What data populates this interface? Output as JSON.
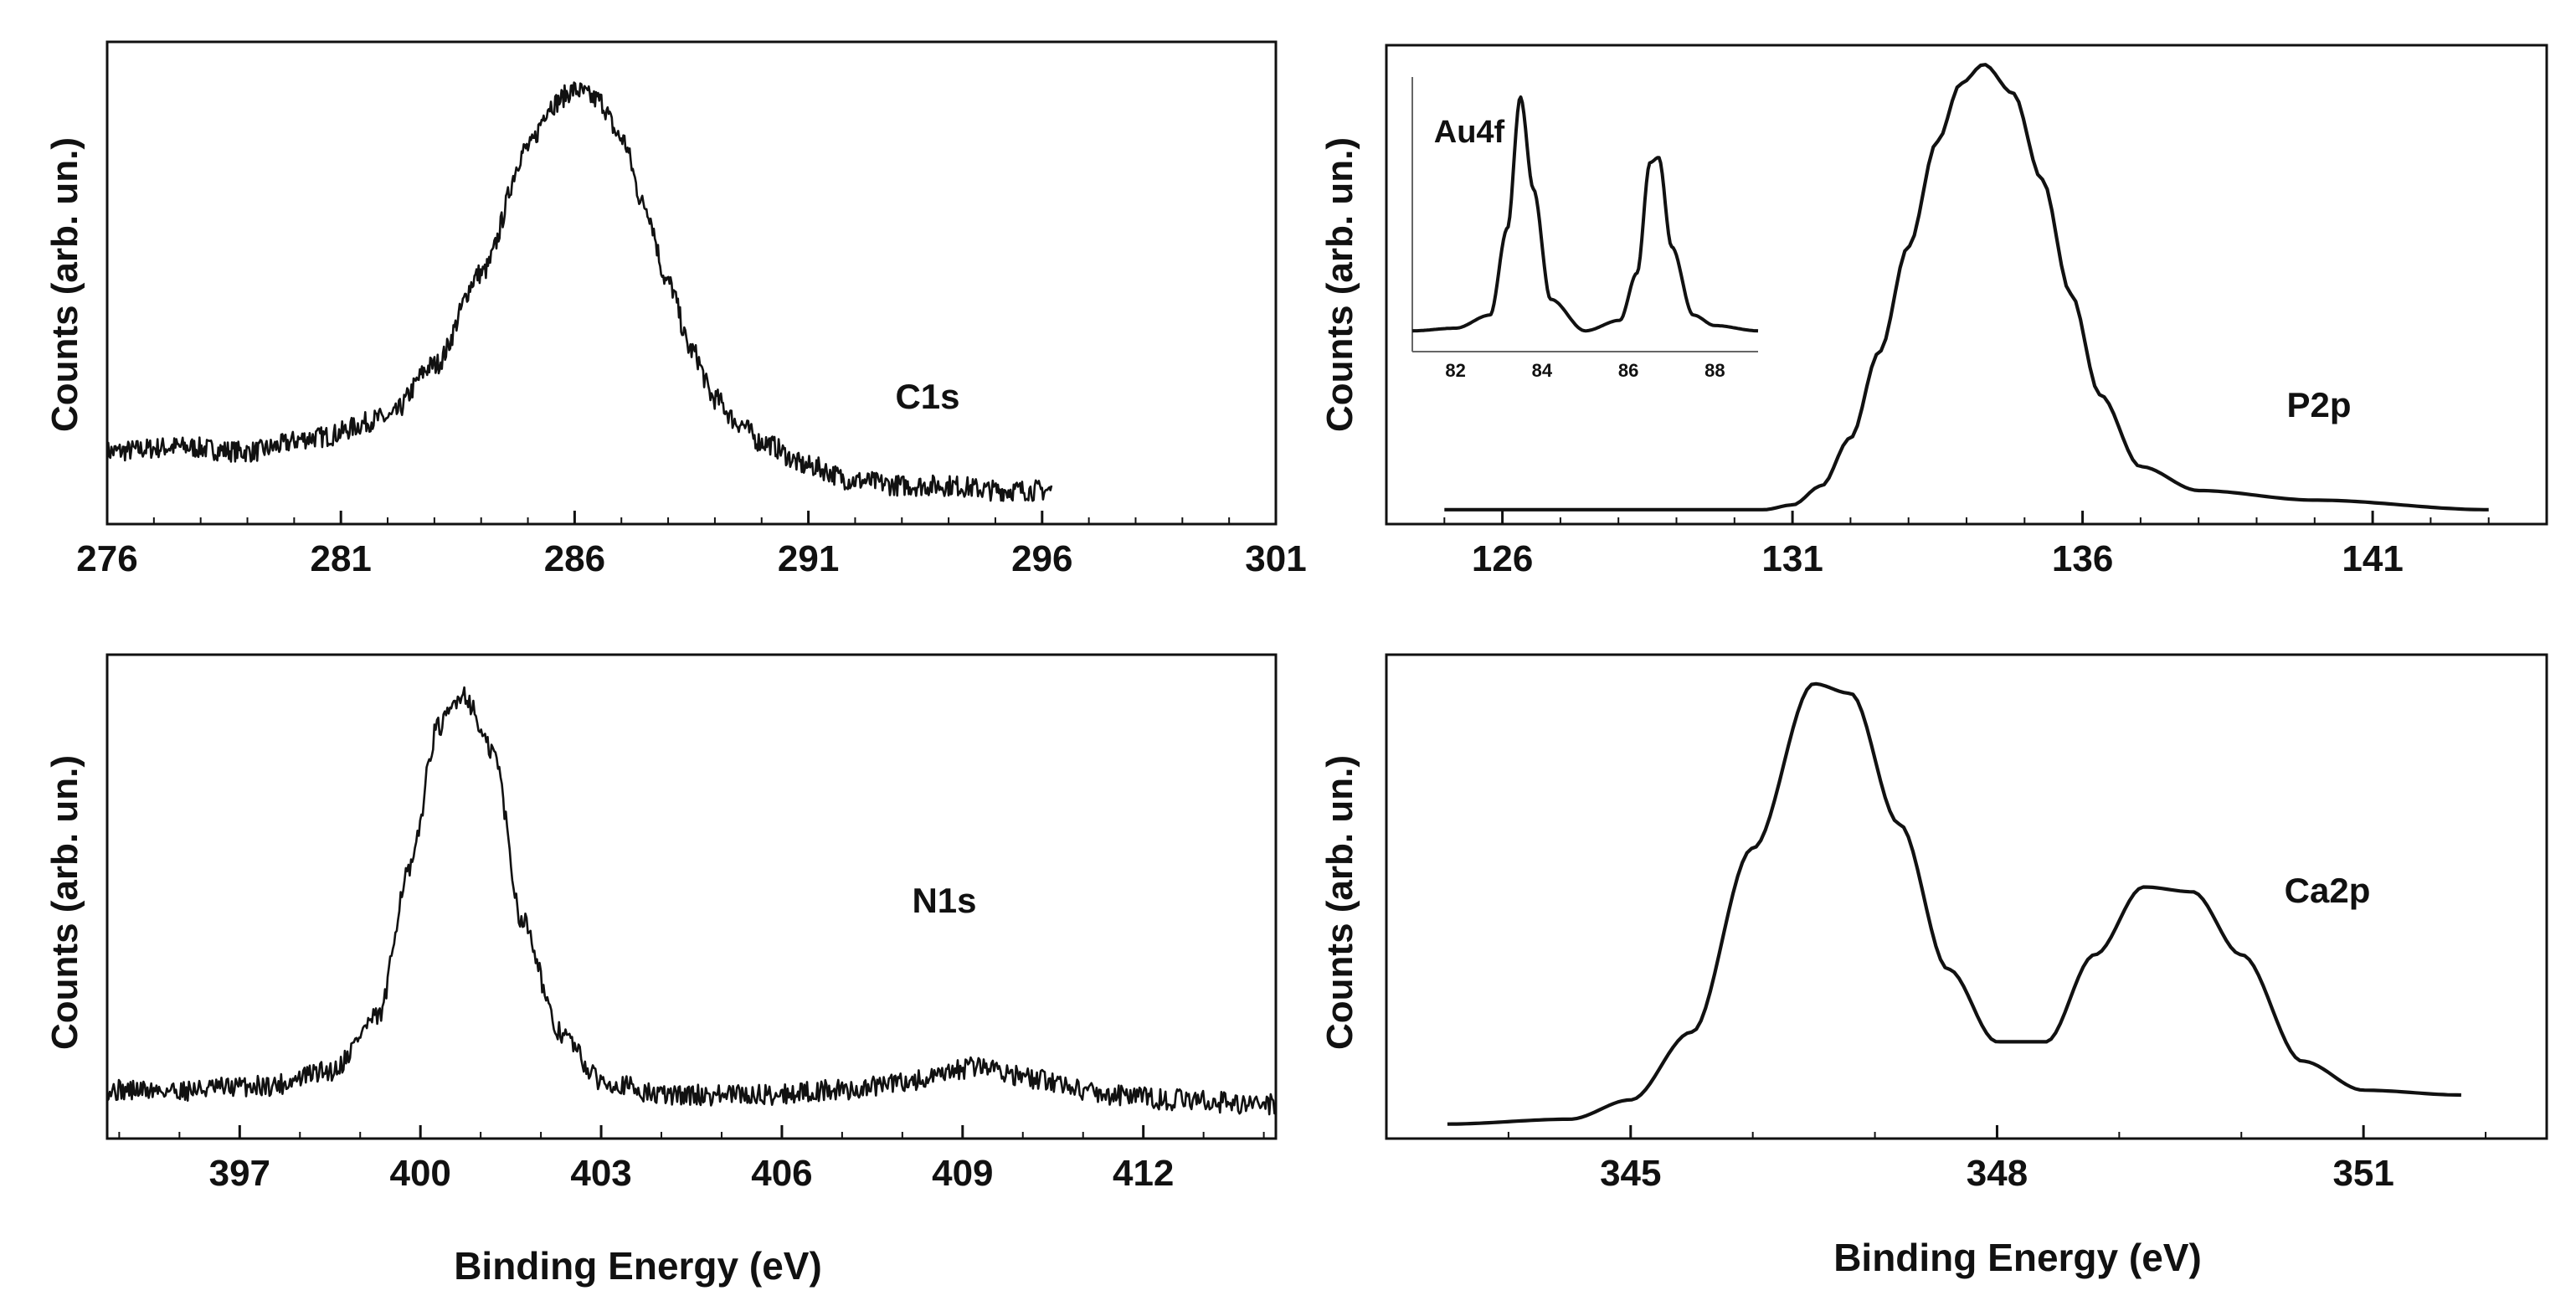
{
  "colors": {
    "axis": "#111111",
    "curve": "#111111",
    "background": "#ffffff"
  },
  "chart_data": [
    {
      "id": "c1s",
      "type": "line",
      "label": "C1s",
      "ylabel": "Counts (arb. un.)",
      "xlabel": "",
      "xlim": [
        276,
        301
      ],
      "ylim": [
        0,
        100
      ],
      "xticks": [
        276,
        281,
        286,
        291,
        296,
        301
      ],
      "noise": 2.2,
      "series": [
        {
          "name": "C1s",
          "x": [
            276.0,
            277.5,
            279.0,
            280.5,
            282.0,
            283.0,
            284.0,
            285.0,
            285.5,
            286.0,
            286.5,
            287.0,
            287.5,
            288.0,
            288.5,
            289.0,
            289.5,
            290.0,
            291.0,
            292.0,
            293.0,
            294.0,
            295.0,
            296.2
          ],
          "y": [
            15,
            16,
            15,
            18,
            22,
            33,
            52,
            78,
            87,
            90,
            88,
            80,
            66,
            50,
            36,
            26,
            21,
            17,
            12,
            9,
            8,
            8,
            7,
            7
          ]
        }
      ]
    },
    {
      "id": "p2p",
      "type": "line",
      "label": "P2p",
      "ylabel": "Counts (arb. un.)",
      "xlabel": "",
      "xlim": [
        124,
        144
      ],
      "ylim": [
        0,
        100
      ],
      "xticks": [
        126,
        131,
        136,
        141
      ],
      "noise": 0,
      "series": [
        {
          "name": "P2p",
          "x": [
            125.0,
            127.0,
            129.0,
            130.5,
            131.0,
            131.5,
            132.0,
            132.5,
            133.0,
            133.5,
            133.9,
            134.3,
            134.8,
            135.3,
            135.8,
            136.3,
            137.0,
            138.0,
            140.0,
            143.0
          ],
          "y": [
            3,
            3,
            3,
            3,
            4,
            8,
            18,
            36,
            58,
            80,
            92,
            96,
            90,
            72,
            48,
            27,
            12,
            7,
            5,
            3
          ]
        }
      ],
      "inset": {
        "label": "Au4f",
        "xlim": [
          81,
          89
        ],
        "ylim": [
          0,
          100
        ],
        "xticks": [
          82,
          84,
          86,
          88
        ],
        "series": [
          {
            "name": "Au4f",
            "x": [
              81.0,
              82.0,
              82.8,
              83.2,
              83.5,
              83.8,
              84.2,
              85.0,
              85.8,
              86.2,
              86.5,
              86.7,
              87.0,
              87.5,
              88.0,
              89.0
            ],
            "y": [
              6,
              7,
              12,
              45,
              95,
              60,
              18,
              6,
              10,
              28,
              70,
              72,
              38,
              12,
              8,
              6
            ]
          }
        ]
      }
    },
    {
      "id": "n1s",
      "type": "line",
      "label": "N1s",
      "ylabel": "Counts (arb. un.)",
      "xlabel": "Binding Energy (eV)",
      "xlim": [
        394.8,
        414.2
      ],
      "ylim": [
        0,
        100
      ],
      "xticks": [
        397,
        400,
        403,
        406,
        409,
        412
      ],
      "noise": 2.2,
      "series": [
        {
          "name": "N1s",
          "x": [
            394.8,
            396.0,
            397.5,
            398.5,
            399.3,
            399.8,
            400.3,
            400.7,
            401.2,
            401.7,
            402.3,
            403.0,
            404.0,
            405.5,
            407.0,
            408.3,
            409.3,
            410.3,
            411.5,
            412.5,
            414.2
          ],
          "y": [
            10,
            10,
            11,
            14,
            25,
            55,
            85,
            92,
            80,
            45,
            22,
            12,
            9,
            9,
            10,
            12,
            15,
            12,
            9,
            8,
            7
          ]
        }
      ]
    },
    {
      "id": "ca2p",
      "type": "line",
      "label": "Ca2p",
      "ylabel": "Counts (arb. un.)",
      "xlabel": "Binding Energy (eV)",
      "xlim": [
        343,
        352.5
      ],
      "ylim": [
        0,
        100
      ],
      "xticks": [
        345,
        348,
        351
      ],
      "noise": 0,
      "series": [
        {
          "name": "Ca2p",
          "x": [
            343.5,
            344.5,
            345.0,
            345.5,
            346.0,
            346.5,
            346.8,
            347.2,
            347.6,
            348.0,
            348.4,
            348.8,
            349.2,
            349.6,
            350.0,
            350.5,
            351.0,
            351.8
          ],
          "y": [
            3,
            4,
            8,
            22,
            60,
            94,
            92,
            65,
            35,
            20,
            20,
            38,
            52,
            51,
            38,
            16,
            10,
            9
          ]
        }
      ]
    }
  ]
}
